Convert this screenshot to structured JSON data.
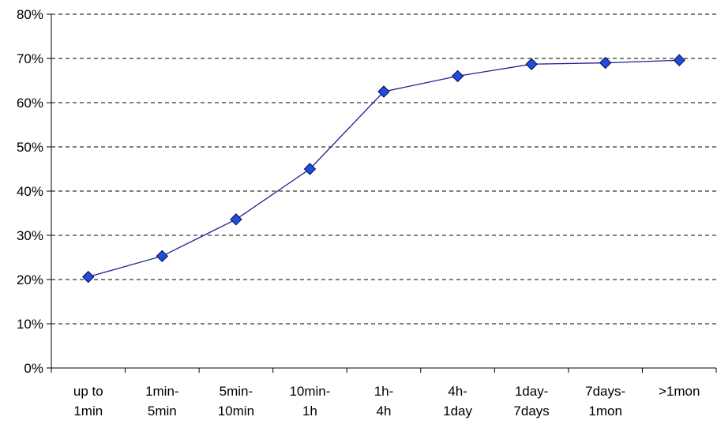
{
  "chart_data": {
    "type": "line",
    "title": "",
    "xlabel": "",
    "ylabel": "",
    "categories": [
      [
        "up to",
        "1min"
      ],
      [
        "1min-",
        "5min"
      ],
      [
        "5min-",
        "10min"
      ],
      [
        "10min-",
        "1h"
      ],
      [
        "1h-",
        "4h"
      ],
      [
        "4h-",
        "1day"
      ],
      [
        "1day-",
        "7days"
      ],
      [
        "7days-",
        "1mon"
      ],
      [
        ">1mon"
      ]
    ],
    "series": [
      {
        "values": [
          20.6,
          25.3,
          33.6,
          45.0,
          62.5,
          66.0,
          68.7,
          69.0,
          69.6
        ],
        "color": "#1f1f8c",
        "marker": "diamond",
        "marker_fill": "#1f4fd8"
      }
    ],
    "ylim": [
      0,
      80
    ],
    "yticks": [
      0,
      10,
      20,
      30,
      40,
      50,
      60,
      70,
      80
    ],
    "ytick_labels": [
      "0%",
      "10%",
      "20%",
      "30%",
      "40%",
      "50%",
      "60%",
      "70%",
      "80%"
    ],
    "grid": "horizontal-dashed",
    "legend": "none"
  }
}
